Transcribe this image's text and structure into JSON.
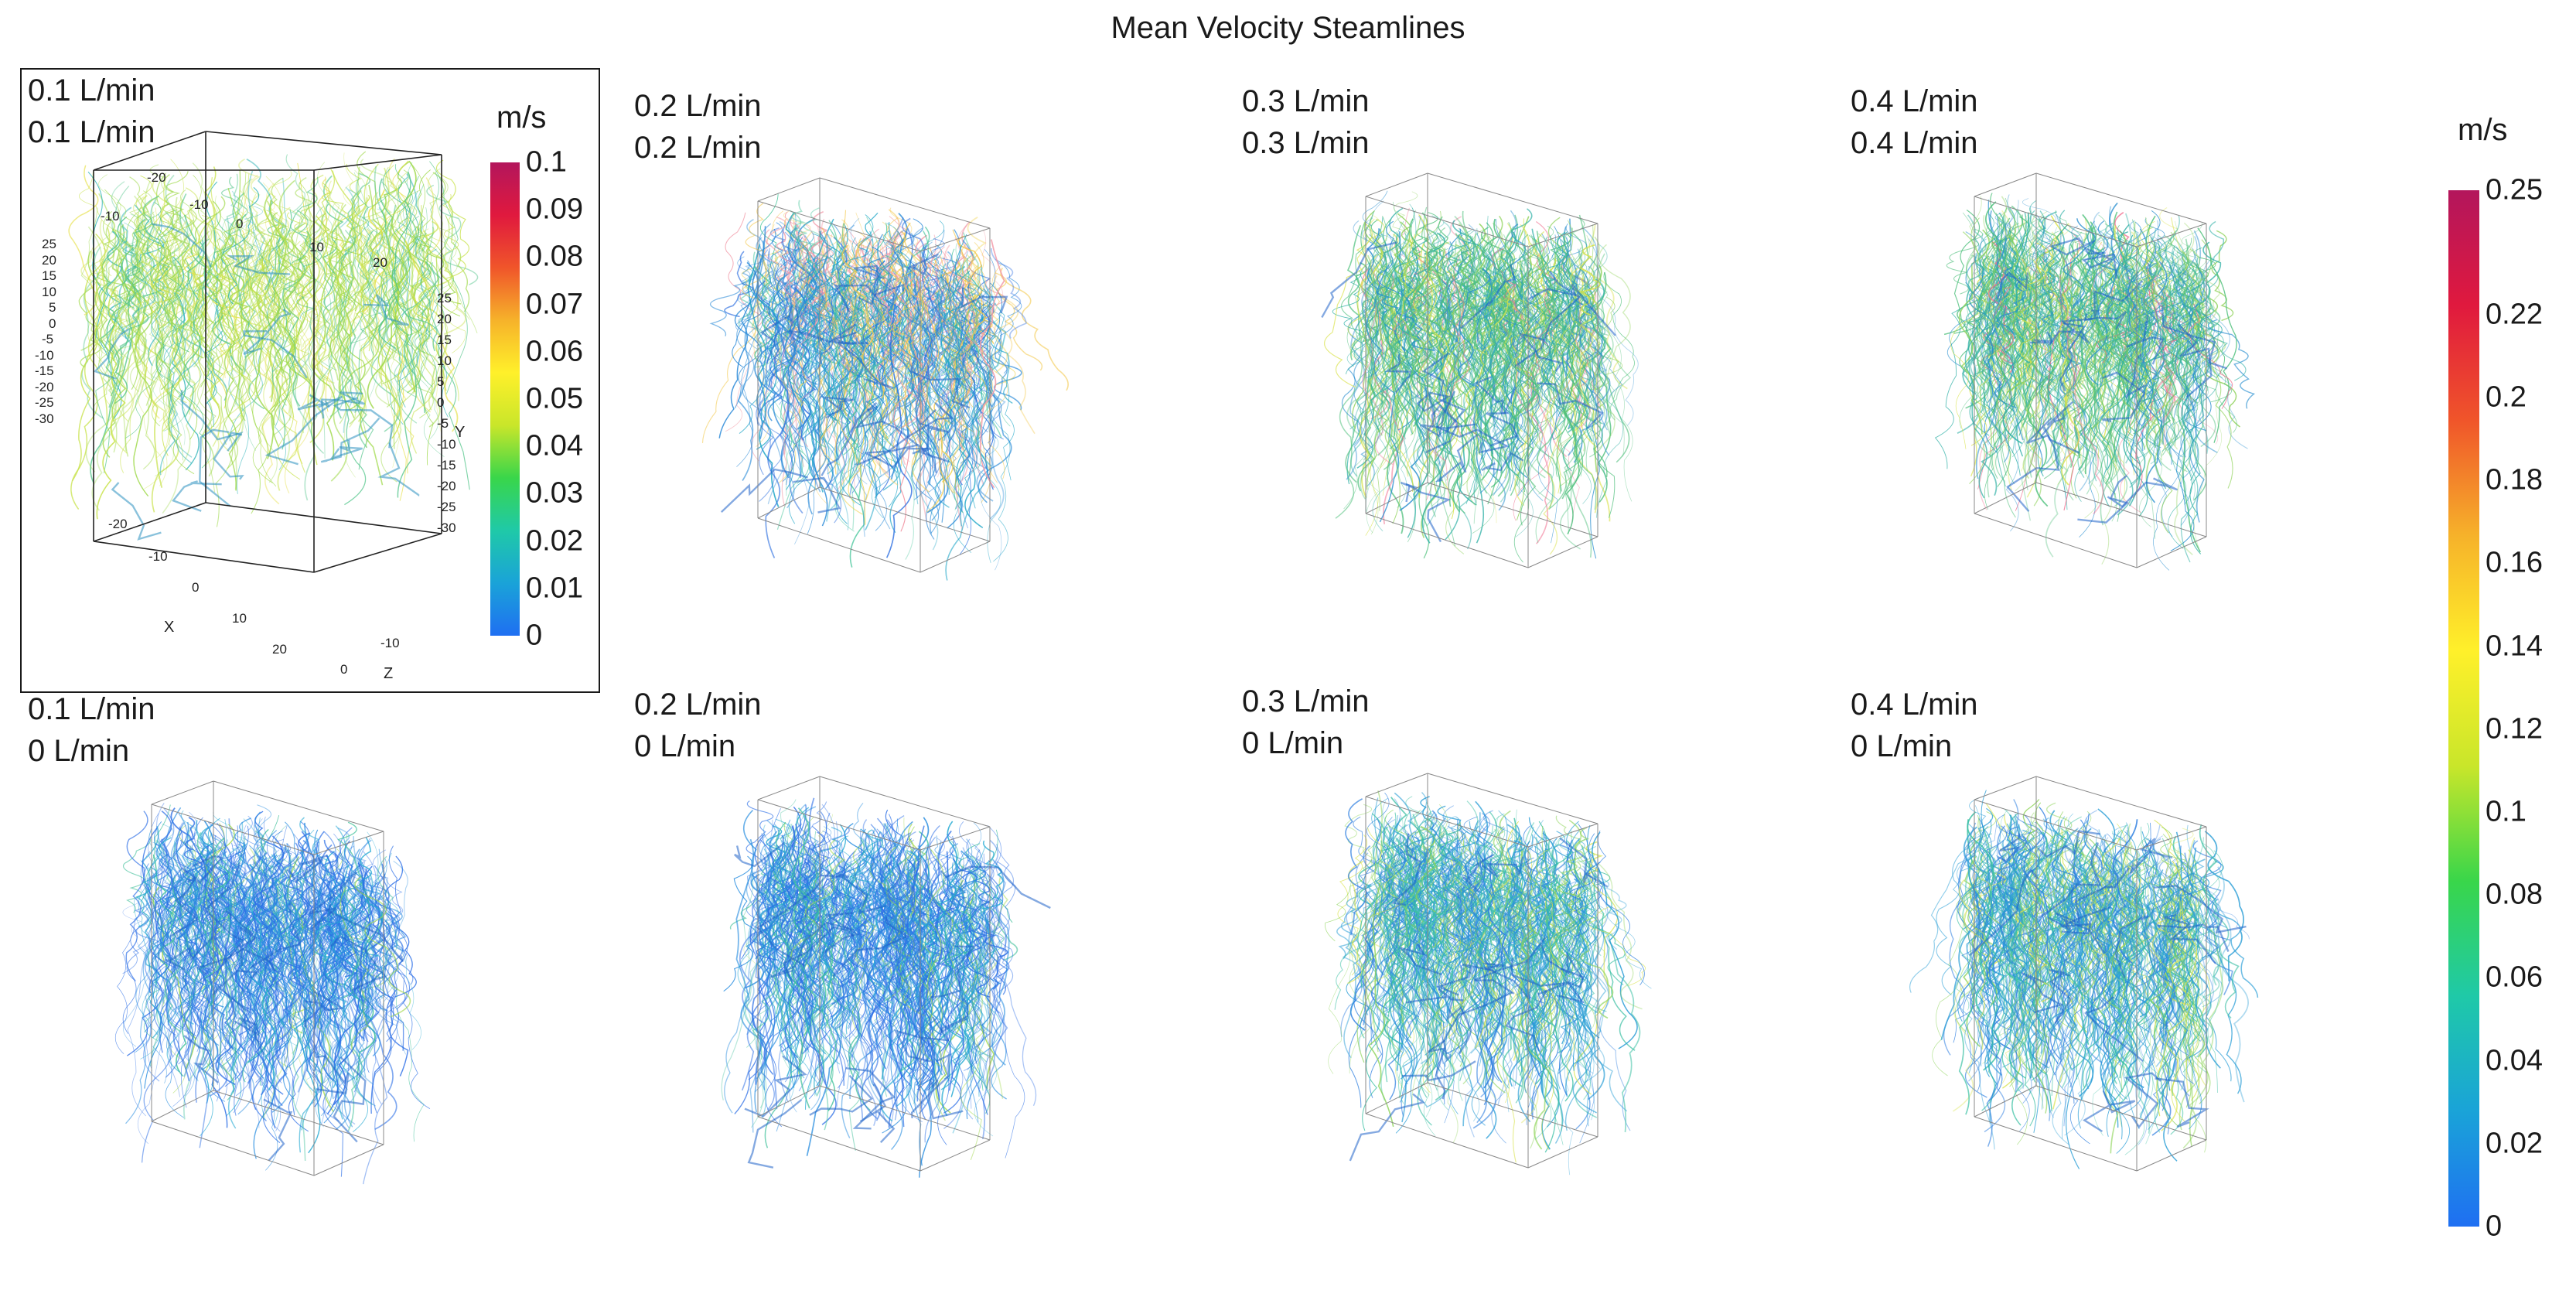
{
  "title": "Mean Velocity Steamlines",
  "panels": [
    {
      "id": "p1",
      "line1": "0.1 L/min",
      "line2": "0.1 L/min",
      "scheme": "yellowgreen"
    },
    {
      "id": "p2",
      "line1": "0.2 L/min",
      "line2": "0.2 L/min",
      "scheme": "blue-top"
    },
    {
      "id": "p3",
      "line1": "0.3 L/min",
      "line2": "0.3 L/min",
      "scheme": "green"
    },
    {
      "id": "p4",
      "line1": "0.4 L/min",
      "line2": "0.4 L/min",
      "scheme": "green"
    },
    {
      "id": "p5",
      "line1": "0.1 L/min",
      "line2": "0 L/min",
      "scheme": "blue"
    },
    {
      "id": "p6",
      "line1": "0.2 L/min",
      "line2": "0 L/min",
      "scheme": "blue"
    },
    {
      "id": "p7",
      "line1": "0.3 L/min",
      "line2": "0 L/min",
      "scheme": "teal"
    },
    {
      "id": "p8",
      "line1": "0.4 L/min",
      "line2": "0 L/min",
      "scheme": "teal"
    }
  ],
  "inset_colorbar": {
    "unit": "m/s",
    "ticks": [
      "0.1",
      "0.09",
      "0.08",
      "0.07",
      "0.06",
      "0.05",
      "0.04",
      "0.03",
      "0.02",
      "0.01",
      "0"
    ]
  },
  "main_colorbar": {
    "unit": "m/s",
    "ticks": [
      "0.25",
      "0.22",
      "0.2",
      "0.18",
      "0.16",
      "0.14",
      "0.12",
      "0.1",
      "0.08",
      "0.06",
      "0.04",
      "0.02",
      "0"
    ]
  },
  "axes": {
    "x_label": "X",
    "y_label": "Y",
    "z_label": "Z",
    "left_ticks": [
      "25",
      "20",
      "15",
      "10",
      "5",
      "0",
      "-5",
      "-10",
      "-15",
      "-20",
      "-25",
      "-30"
    ],
    "right_ticks": [
      "25",
      "20",
      "15",
      "10",
      "5",
      "0",
      "-5",
      "-10",
      "-15",
      "-20",
      "-25",
      "-30"
    ],
    "top_ticks": [
      "-10",
      "-20",
      "-10",
      "0",
      "10",
      "20"
    ],
    "x_ticks": [
      "-20",
      "-10",
      "0",
      "10",
      "20"
    ],
    "z_ticks": [
      "-10",
      "0"
    ]
  },
  "colors": {
    "colormap": [
      "#1f6ff2",
      "#1aa3d8",
      "#1fc9a8",
      "#39d64a",
      "#c9e62a",
      "#fff02a",
      "#f6b22a",
      "#f0552a",
      "#e0193e",
      "#b3165c"
    ]
  }
}
